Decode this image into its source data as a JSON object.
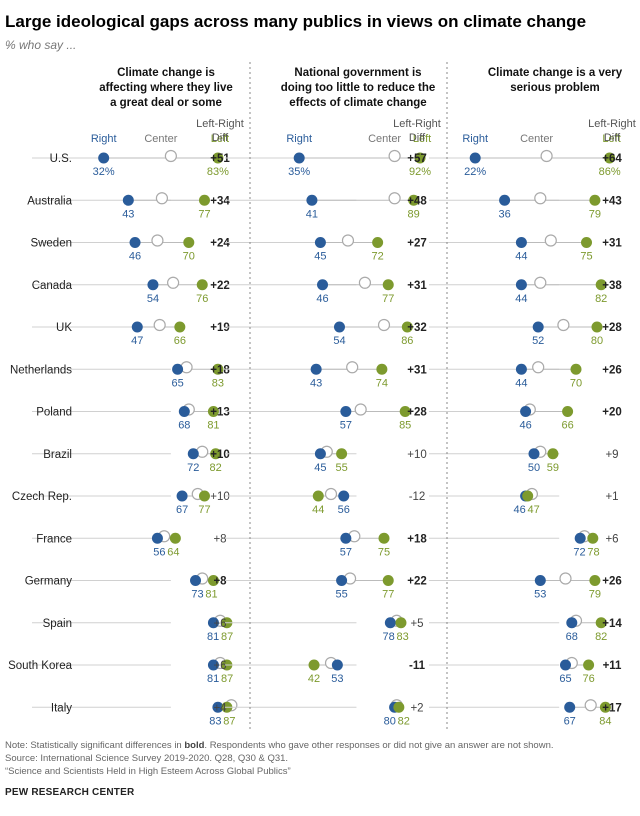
{
  "title": "Large ideological gaps across many publics in views on climate change",
  "subtitle": "% who say ...",
  "legend": {
    "right": "Right",
    "center": "Center",
    "left": "Left",
    "diff_line1": "Left-Right",
    "diff_line2": "Diff"
  },
  "colors": {
    "right": "#2a5c9a",
    "center": "#ffffff",
    "left": "#7d9a2e",
    "line": "#d0d0d0",
    "divider": "#888888"
  },
  "notes": {
    "line1_pre": "Note: Statistically significant differences in ",
    "line1_bold": "bold",
    "line1_post": ". Respondents who gave other responses or did not give an answer are not shown.",
    "line2": "Source: International Science Survey 2019-2020. Q28, Q30 & Q31.",
    "line3": "“Science and Scientists Held in High Esteem Across Global Publics”"
  },
  "source_brand": "PEW RESEARCH CENTER",
  "chart_data": [
    {
      "type": "dot",
      "title": [
        "Climate change is",
        "affecting where they live",
        "a great deal or some"
      ],
      "categories": [
        "U.S.",
        "Australia",
        "Sweden",
        "Canada",
        "UK",
        "Netherlands",
        "Poland",
        "Brazil",
        "Czech Rep.",
        "France",
        "Germany",
        "Spain",
        "South Korea",
        "Italy"
      ],
      "right": [
        32,
        43,
        46,
        54,
        47,
        65,
        68,
        72,
        67,
        56,
        73,
        81,
        81,
        83
      ],
      "center": [
        62,
        58,
        56,
        63,
        57,
        69,
        70,
        76,
        74,
        59,
        76,
        84,
        84,
        89
      ],
      "left": [
        83,
        77,
        70,
        76,
        66,
        83,
        81,
        82,
        77,
        64,
        81,
        87,
        87,
        87
      ],
      "diff": [
        "+51",
        "+34",
        "+24",
        "+22",
        "+19",
        "+18",
        "+13",
        "+10",
        "+10",
        "+8",
        "+8",
        "+6",
        "+6",
        "+4"
      ],
      "diff_bold": [
        true,
        true,
        true,
        true,
        true,
        true,
        true,
        true,
        false,
        false,
        true,
        false,
        false,
        false
      ]
    },
    {
      "type": "dot",
      "title": [
        "National government is",
        "doing too little to reduce the",
        "effects of climate change"
      ],
      "categories": [
        "U.S.",
        "Australia",
        "Sweden",
        "Canada",
        "UK",
        "Netherlands",
        "Poland",
        "Brazil",
        "Czech Rep.",
        "France",
        "Germany",
        "Spain",
        "South Korea",
        "Italy"
      ],
      "right": [
        35,
        41,
        45,
        46,
        54,
        43,
        57,
        45,
        56,
        57,
        55,
        78,
        53,
        80
      ],
      "center": [
        80,
        80,
        58,
        66,
        75,
        60,
        64,
        48,
        50,
        61,
        59,
        81,
        50,
        81
      ],
      "left": [
        92,
        89,
        72,
        77,
        86,
        74,
        85,
        55,
        44,
        75,
        77,
        83,
        42,
        82
      ],
      "diff": [
        "+57",
        "+48",
        "+27",
        "+31",
        "+32",
        "+31",
        "+28",
        "+10",
        "-12",
        "+18",
        "+22",
        "+5",
        "-11",
        "+2"
      ],
      "diff_bold": [
        true,
        true,
        true,
        true,
        true,
        true,
        true,
        false,
        false,
        true,
        true,
        false,
        true,
        false
      ]
    },
    {
      "type": "dot",
      "title": [
        "Climate change is a very",
        "serious problem"
      ],
      "categories": [
        "U.S.",
        "Australia",
        "Sweden",
        "Canada",
        "UK",
        "Netherlands",
        "Poland",
        "Brazil",
        "Czech Rep.",
        "France",
        "Germany",
        "Spain",
        "South Korea",
        "Italy"
      ],
      "right": [
        22,
        36,
        44,
        44,
        52,
        44,
        46,
        50,
        46,
        72,
        53,
        68,
        65,
        67
      ],
      "center": [
        56,
        53,
        58,
        53,
        64,
        52,
        48,
        53,
        49,
        74,
        65,
        70,
        68,
        77
      ],
      "left": [
        86,
        79,
        75,
        82,
        80,
        70,
        66,
        59,
        47,
        78,
        79,
        82,
        76,
        84
      ],
      "diff": [
        "+64",
        "+43",
        "+31",
        "+38",
        "+28",
        "+26",
        "+20",
        "+9",
        "+1",
        "+6",
        "+26",
        "+14",
        "+11",
        "+17"
      ],
      "diff_bold": [
        true,
        true,
        true,
        true,
        true,
        true,
        true,
        false,
        false,
        false,
        true,
        true,
        true,
        true
      ]
    }
  ]
}
